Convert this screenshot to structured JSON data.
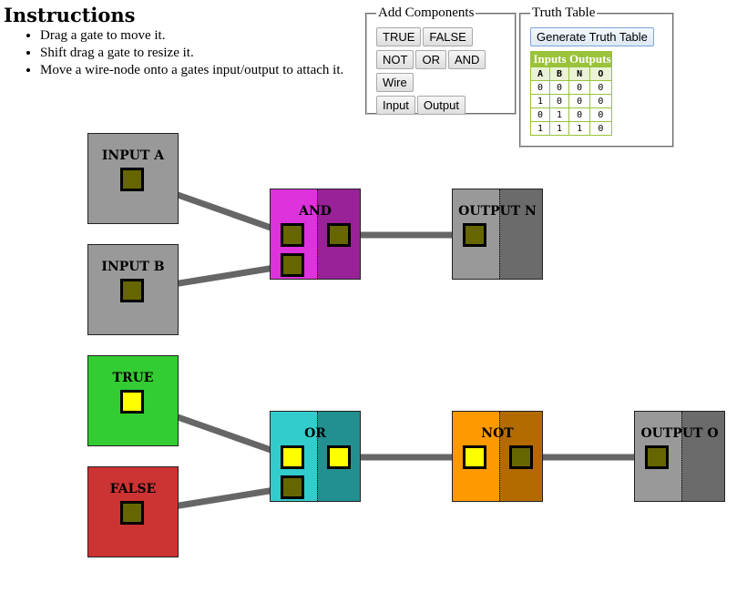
{
  "instructions": {
    "title": "Instructions",
    "items": [
      "Drag a gate to move it.",
      "Shift drag a gate to resize it.",
      "Move a wire-node onto a gates input/output to attach it."
    ]
  },
  "add_components": {
    "legend": "Add Components",
    "buttons": [
      "TRUE",
      "FALSE",
      "NOT",
      "OR",
      "AND",
      "Wire",
      "Input",
      "Output"
    ]
  },
  "truth_table": {
    "legend": "Truth Table",
    "generate_label": "Generate Truth Table",
    "inputs_header": "Inputs",
    "outputs_header": "Outputs",
    "columns": [
      "A",
      "B",
      "N",
      "O"
    ],
    "rows": [
      [
        "0",
        "0",
        "0",
        "0"
      ],
      [
        "1",
        "0",
        "0",
        "0"
      ],
      [
        "0",
        "1",
        "0",
        "0"
      ],
      [
        "1",
        "1",
        "1",
        "0"
      ]
    ]
  },
  "gates": {
    "input_a": "INPUT A",
    "input_b": "INPUT B",
    "and": "AND",
    "output_n": "OUTPUT N",
    "true": "TRUE",
    "false": "FALSE",
    "or": "OR",
    "not": "NOT",
    "output_o": "OUTPUT O"
  },
  "colors": {
    "input_gate": "#999999",
    "and_left": "#dd33dd",
    "and_right": "#992299",
    "or_left": "#33cccc",
    "or_right": "#229090",
    "not_left": "#ff9900",
    "not_right": "#b36b00",
    "output_left": "#999999",
    "output_right": "#6b6b6b",
    "true_gate": "#33cc33",
    "false_gate": "#cc3333",
    "node_on": "#ffff00",
    "node_off": "#666600",
    "wire": "#666666"
  }
}
